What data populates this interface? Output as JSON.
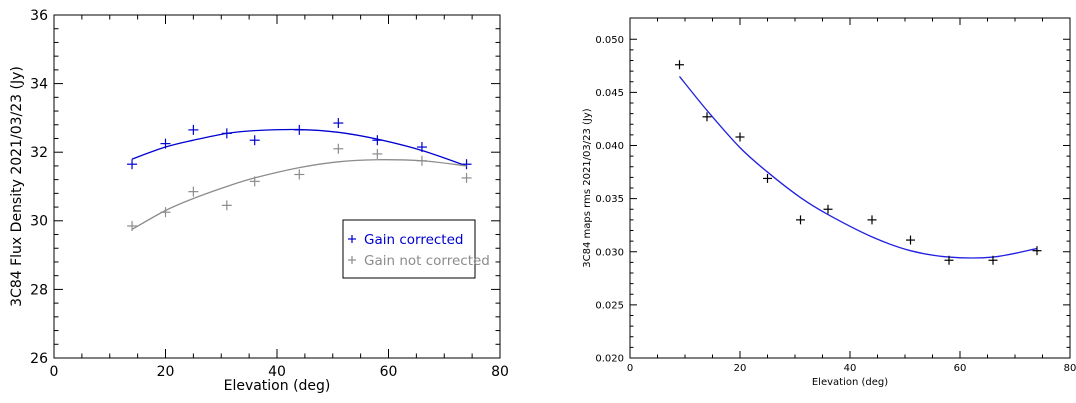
{
  "chart_data": [
    {
      "type": "scatter",
      "title": "",
      "xlabel": "Elevation (deg)",
      "ylabel": "3C84 Flux Density 2021/03/23 (Jy)",
      "xlim": [
        0,
        80
      ],
      "ylim": [
        26,
        36
      ],
      "xticks": [
        0,
        20,
        40,
        60,
        80
      ],
      "yticks": [
        26,
        28,
        30,
        32,
        34,
        36
      ],
      "x_tick_labels": [
        "0",
        "20",
        "40",
        "60",
        "80"
      ],
      "y_tick_labels": [
        "26",
        "28",
        "30",
        "32",
        "34",
        "36"
      ],
      "grid": false,
      "legend_position": "lower-right",
      "series": [
        {
          "name": "Gain corrected",
          "color": "#0000d0",
          "marker": "plus",
          "x": [
            14,
            20,
            25,
            31,
            36,
            44,
            51,
            58,
            66,
            74
          ],
          "y": [
            31.65,
            32.25,
            32.65,
            32.55,
            32.35,
            32.65,
            32.85,
            32.35,
            32.15,
            31.65
          ],
          "fit_curve": {
            "x": [
              14,
              20,
              25,
              31,
              36,
              44,
              51,
              58,
              66,
              74
            ],
            "y": [
              31.8,
              32.15,
              32.35,
              32.55,
              32.63,
              32.66,
              32.58,
              32.38,
              32.05,
              31.6
            ]
          }
        },
        {
          "name": "Gain not corrected",
          "color": "#8c8c8c",
          "marker": "plus",
          "x": [
            14,
            20,
            25,
            31,
            36,
            44,
            51,
            58,
            66,
            74
          ],
          "y": [
            29.85,
            30.25,
            30.85,
            30.45,
            31.15,
            31.35,
            32.1,
            31.95,
            31.75,
            31.25
          ],
          "fit_curve": {
            "x": [
              14,
              20,
              25,
              31,
              36,
              44,
              51,
              58,
              66,
              74
            ],
            "y": [
              29.75,
              30.3,
              30.65,
              31.0,
              31.25,
              31.55,
              31.72,
              31.78,
              31.75,
              31.6
            ]
          }
        }
      ]
    },
    {
      "type": "scatter",
      "title": "",
      "xlabel": "Elevation (deg)",
      "ylabel": "3C84 maps rms 2021/03/23 (Jy)",
      "xlim": [
        0,
        80
      ],
      "ylim": [
        0.02,
        0.052
      ],
      "xticks": [
        0,
        20,
        40,
        60,
        80
      ],
      "yticks": [
        0.02,
        0.025,
        0.03,
        0.035,
        0.04,
        0.045,
        0.05
      ],
      "x_tick_labels": [
        "0",
        "20",
        "40",
        "60",
        "80"
      ],
      "y_tick_labels": [
        "0.020",
        "0.025",
        "0.030",
        "0.035",
        "0.040",
        "0.045",
        "0.050"
      ],
      "grid": false,
      "series": [
        {
          "color": "#000000",
          "marker": "plus",
          "x": [
            9,
            14,
            20,
            25,
            31,
            36,
            44,
            51,
            58,
            66,
            74
          ],
          "y": [
            0.0476,
            0.0427,
            0.0408,
            0.0369,
            0.033,
            0.034,
            0.033,
            0.0311,
            0.0292,
            0.0292,
            0.0301
          ],
          "fit_curve": {
            "color": "#2020e0",
            "x": [
              9,
              14,
              20,
              25,
              31,
              36,
              44,
              51,
              58,
              66,
              74
            ],
            "y": [
              0.0465,
              0.0433,
              0.0398,
              0.0375,
              0.0351,
              0.0335,
              0.0314,
              0.0301,
              0.0295,
              0.0295,
              0.0303
            ]
          }
        }
      ]
    }
  ]
}
